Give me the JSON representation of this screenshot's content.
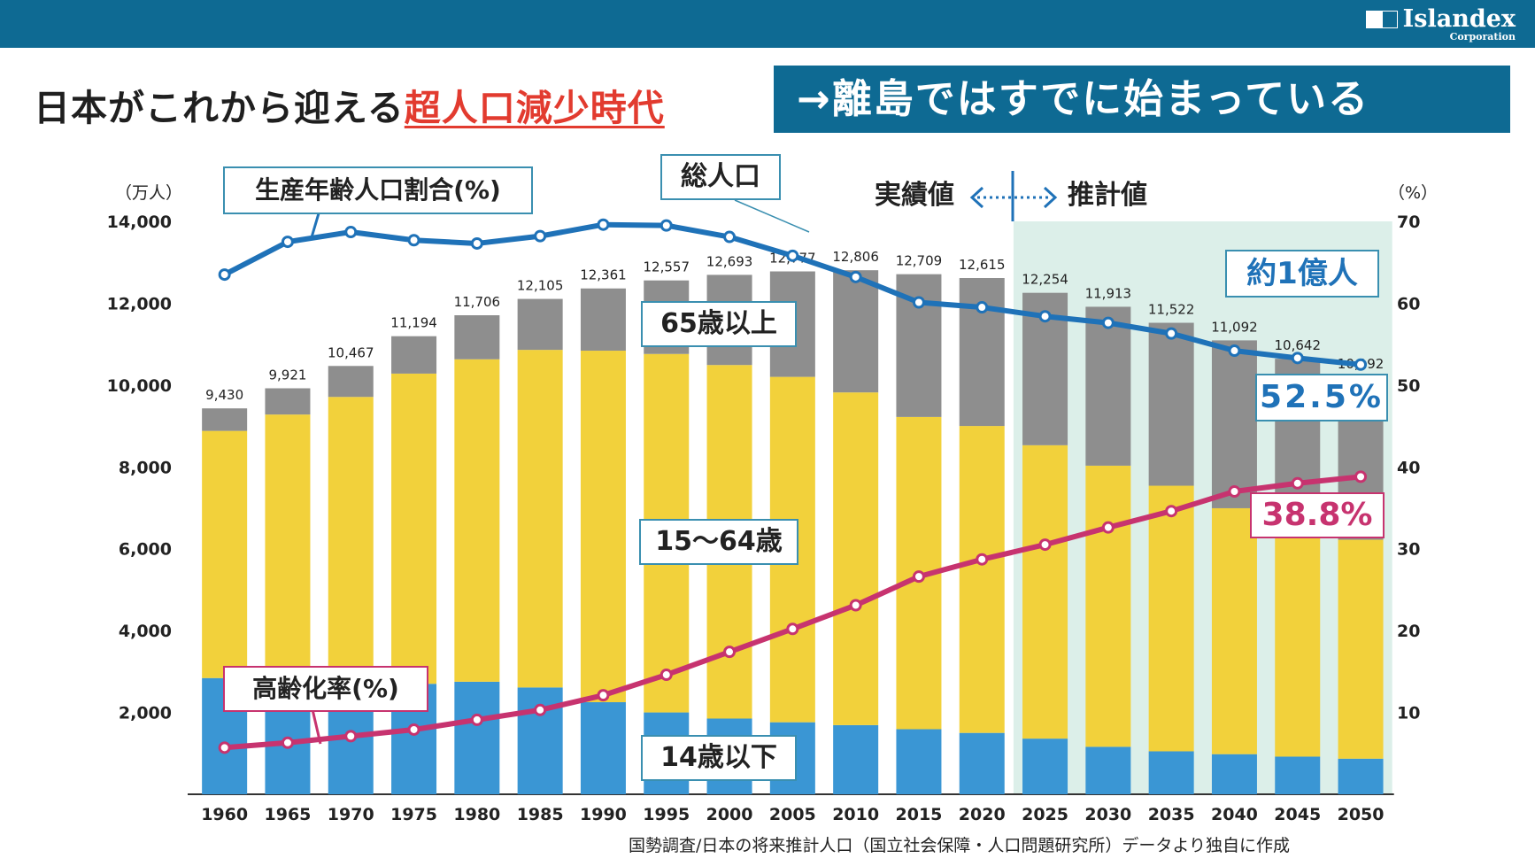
{
  "header": {
    "logo_name": "Islandex",
    "logo_sub": "Corporation",
    "headline_main": "日本がこれから迎える",
    "headline_emphasis": "超人口減少時代",
    "headline_box": "→離島ではすでに始まっている"
  },
  "labels": {
    "left_unit": "（万人）",
    "right_unit": "（%）",
    "working_ratio": "生産年齢人口割合(%)",
    "total_population": "総人口",
    "actual": "実績値",
    "projected": "推計値",
    "aged_65": "65歳以上",
    "aged_15_64": "15〜64歳",
    "aged_14": "14歳以下",
    "aging_rate": "高齢化率(%)",
    "about_100m": "約1億人",
    "working_2050": "52.5%",
    "aging_2050": "38.8%"
  },
  "source": "国勢調査/日本の将来推計人口（国立社会保障・人口問題研究所）データより独自に作成",
  "colors": {
    "young": "#3a96d4",
    "working": "#f2d13b",
    "elderly": "#8e8e8e",
    "working_ratio_line": "#1f72b8",
    "aging_rate_line": "#c7336f",
    "projection_bg": "#dcefe9",
    "header": "#0e6a93"
  },
  "chart_data": {
    "type": "bar",
    "stacked": true,
    "categories": [
      "1960",
      "1965",
      "1970",
      "1975",
      "1980",
      "1985",
      "1990",
      "1995",
      "2000",
      "2005",
      "2010",
      "2015",
      "2020",
      "2025",
      "2030",
      "2035",
      "2040",
      "2045",
      "2050"
    ],
    "projection_start": "2025",
    "total_labels": [
      "9,430",
      "9,921",
      "10,467",
      "11,194",
      "11,706",
      "12,105",
      "12,361",
      "12,557",
      "12,693",
      "12,777",
      "12,806",
      "12,709",
      "12,615",
      "12,254",
      "11,913",
      "11,522",
      "11,092",
      "10,642",
      "10,192"
    ],
    "series": [
      {
        "name": "14歳以下",
        "values": [
          2840,
          2550,
          2500,
          2700,
          2750,
          2610,
          2250,
          2000,
          1850,
          1760,
          1690,
          1590,
          1500,
          1360,
          1160,
          1050,
          980,
          920,
          870
        ]
      },
      {
        "name": "15〜64歳",
        "values": [
          6040,
          6730,
          7210,
          7580,
          7880,
          8250,
          8590,
          8760,
          8640,
          8440,
          8130,
          7630,
          7500,
          7170,
          6870,
          6490,
          6010,
          5560,
          5350
        ]
      },
      {
        "name": "65歳以上",
        "values": [
          550,
          641,
          757,
          914,
          1076,
          1245,
          1521,
          1797,
          2203,
          2577,
          2986,
          3489,
          3615,
          3724,
          3883,
          3982,
          4102,
          4162,
          3972
        ]
      }
    ],
    "lines": [
      {
        "name": "生産年齢人口割合(%)",
        "axis": "right",
        "values": [
          63.5,
          67.5,
          68.7,
          67.7,
          67.3,
          68.2,
          69.6,
          69.5,
          68.1,
          65.8,
          63.2,
          60.1,
          59.5,
          58.4,
          57.6,
          56.3,
          54.2,
          53.3,
          52.5
        ]
      },
      {
        "name": "高齢化率(%)",
        "axis": "right",
        "values": [
          5.7,
          6.3,
          7.1,
          7.9,
          9.1,
          10.3,
          12.1,
          14.6,
          17.4,
          20.2,
          23.1,
          26.6,
          28.7,
          30.5,
          32.6,
          34.6,
          37.0,
          38.0,
          38.8
        ]
      }
    ],
    "y_left": {
      "min": 0,
      "max": 14000,
      "ticks": [
        "2,000",
        "4,000",
        "6,000",
        "8,000",
        "10,000",
        "12,000",
        "14,000"
      ]
    },
    "y_right": {
      "min": 0,
      "max": 70,
      "ticks": [
        "10",
        "20",
        "30",
        "40",
        "50",
        "60",
        "70"
      ]
    }
  }
}
